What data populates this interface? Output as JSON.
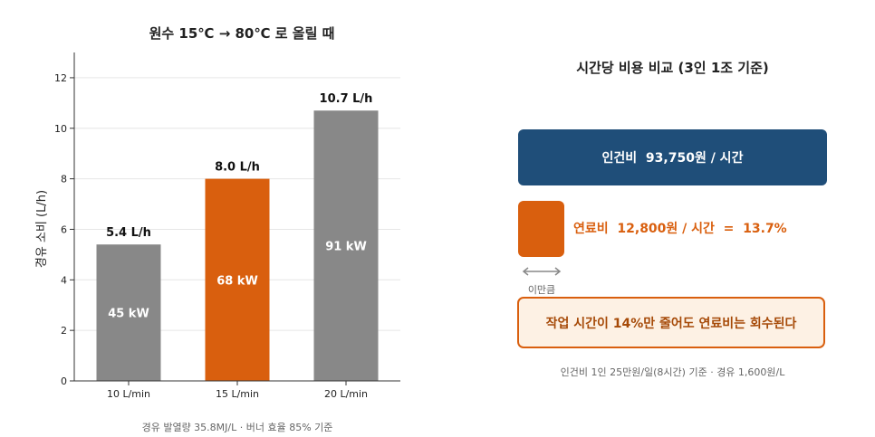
{
  "chart_data": {
    "type": "bar",
    "title": "원수 15℃ → 80℃ 로 올릴 때",
    "xlabel": "",
    "ylabel": "경유 소비 (L/h)",
    "categories": [
      "10 L/min",
      "15 L/min",
      "20 L/min"
    ],
    "values": [
      5.4,
      8.0,
      10.7
    ],
    "value_labels": [
      "5.4 L/h",
      "8.0 L/h",
      "10.7 L/h"
    ],
    "inner_labels": [
      "45 kW",
      "68 kW",
      "91 kW"
    ],
    "ylim": [
      0,
      13
    ],
    "yticks": [
      "0",
      "2",
      "4",
      "6",
      "8",
      "10",
      "12"
    ],
    "ytick_values": [
      0,
      2,
      4,
      6,
      8,
      10,
      12
    ],
    "grid": "horizontal",
    "highlight_index": 1,
    "colors": {
      "default": "#888888",
      "highlight": "#d95f0e"
    }
  },
  "left_note": "경유 발열량 35.8MJ/L · 버너 효율 85% 기준",
  "right_panel": {
    "title": "시간당 비용 비교 (3인 1조 기준)",
    "labor_label": "인건비  93,750원 / 시간",
    "fuel_label": "연료비  12,800원 / 시간  =  13.7%",
    "arrow_caption": "이만큼",
    "callout": "작업 시간이 14%만 줄어도 연료비는 회수된다",
    "note": "인건비 1인 25만원/일(8시간) 기준 · 경유 1,600원/L",
    "colors": {
      "labor": "#1f4e79",
      "fuel": "#d95f0e",
      "callout_bg": "#fdf1e4",
      "arrow": "#888888"
    }
  }
}
